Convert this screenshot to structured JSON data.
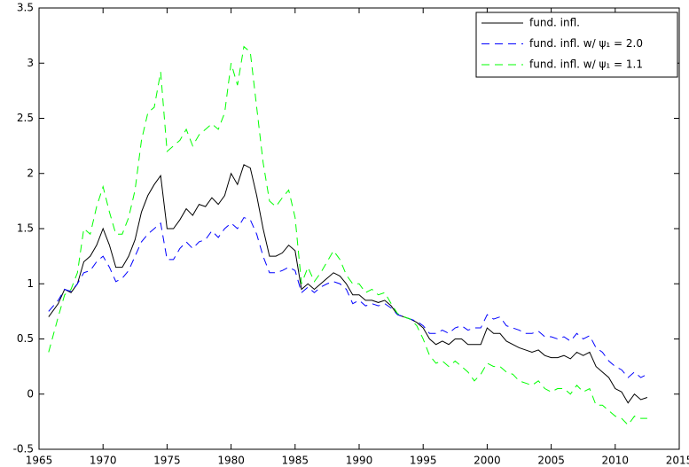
{
  "chart_data": {
    "type": "line",
    "x": [
      1965.75,
      1966.5,
      1967,
      1967.5,
      1968,
      1968.5,
      1969,
      1969.5,
      1970,
      1970.5,
      1971,
      1971.5,
      1972,
      1972.5,
      1973,
      1973.5,
      1974,
      1974.5,
      1975,
      1975.5,
      1976,
      1976.5,
      1977,
      1977.5,
      1978,
      1978.5,
      1979,
      1979.5,
      1980,
      1980.5,
      1981,
      1981.5,
      1982,
      1982.5,
      1983,
      1983.5,
      1984,
      1984.5,
      1985,
      1985.5,
      1986,
      1986.5,
      1987,
      1987.5,
      1988,
      1988.5,
      1989,
      1989.5,
      1990,
      1990.5,
      1991,
      1991.5,
      1992,
      1992.5,
      1993,
      1993.5,
      1994,
      1994.5,
      1995,
      1995.5,
      1996,
      1996.5,
      1997,
      1997.5,
      1998,
      1998.5,
      1999,
      1999.5,
      2000,
      2000.5,
      2001,
      2001.5,
      2002,
      2002.5,
      2003,
      2003.5,
      2004,
      2004.5,
      2005,
      2005.5,
      2006,
      2006.5,
      2007,
      2007.5,
      2008,
      2008.5,
      2009,
      2009.5,
      2010,
      2010.5,
      2011,
      2011.5,
      2012,
      2012.5
    ],
    "series": [
      {
        "name": "fund. infl.",
        "color": "#000000",
        "linestyle": "solid",
        "values": [
          0.7,
          0.82,
          0.95,
          0.92,
          1.0,
          1.2,
          1.25,
          1.35,
          1.5,
          1.35,
          1.15,
          1.15,
          1.25,
          1.4,
          1.65,
          1.8,
          1.9,
          1.98,
          1.5,
          1.5,
          1.58,
          1.68,
          1.62,
          1.72,
          1.7,
          1.78,
          1.72,
          1.8,
          2.0,
          1.9,
          2.08,
          2.05,
          1.8,
          1.5,
          1.25,
          1.25,
          1.28,
          1.35,
          1.3,
          0.95,
          1.0,
          0.95,
          1.0,
          1.05,
          1.1,
          1.07,
          1.0,
          0.9,
          0.9,
          0.85,
          0.85,
          0.83,
          0.85,
          0.8,
          0.72,
          0.7,
          0.68,
          0.65,
          0.6,
          0.5,
          0.45,
          0.48,
          0.45,
          0.5,
          0.5,
          0.45,
          0.45,
          0.45,
          0.6,
          0.55,
          0.55,
          0.48,
          0.45,
          0.42,
          0.4,
          0.38,
          0.4,
          0.35,
          0.33,
          0.33,
          0.35,
          0.32,
          0.38,
          0.35,
          0.38,
          0.25,
          0.2,
          0.15,
          0.05,
          0.02,
          -0.08,
          0.0,
          -0.05,
          -0.03
        ]
      },
      {
        "name": "fund. infl. w/ ψ₁ = 2.0",
        "color": "#0000ff",
        "linestyle": "dashed",
        "values": [
          0.75,
          0.85,
          0.95,
          0.93,
          1.0,
          1.1,
          1.12,
          1.2,
          1.25,
          1.15,
          1.02,
          1.05,
          1.12,
          1.25,
          1.38,
          1.45,
          1.5,
          1.55,
          1.22,
          1.22,
          1.32,
          1.38,
          1.32,
          1.38,
          1.4,
          1.48,
          1.42,
          1.5,
          1.55,
          1.5,
          1.6,
          1.58,
          1.45,
          1.25,
          1.1,
          1.1,
          1.12,
          1.15,
          1.12,
          0.92,
          0.97,
          0.92,
          0.97,
          1.0,
          1.02,
          1.0,
          0.95,
          0.82,
          0.85,
          0.8,
          0.82,
          0.8,
          0.82,
          0.78,
          0.72,
          0.7,
          0.68,
          0.66,
          0.62,
          0.55,
          0.55,
          0.58,
          0.55,
          0.6,
          0.62,
          0.58,
          0.6,
          0.6,
          0.72,
          0.68,
          0.7,
          0.62,
          0.6,
          0.58,
          0.55,
          0.55,
          0.57,
          0.52,
          0.52,
          0.5,
          0.52,
          0.48,
          0.55,
          0.5,
          0.53,
          0.42,
          0.38,
          0.3,
          0.25,
          0.22,
          0.15,
          0.2,
          0.15,
          0.18
        ]
      },
      {
        "name": "fund. infl. w/ ψ₁ = 1.1",
        "color": "#00ff00",
        "linestyle": "dashed",
        "values": [
          0.38,
          0.7,
          0.9,
          0.95,
          1.1,
          1.5,
          1.45,
          1.7,
          1.88,
          1.65,
          1.45,
          1.45,
          1.6,
          1.85,
          2.3,
          2.55,
          2.6,
          2.92,
          2.2,
          2.25,
          2.3,
          2.4,
          2.25,
          2.35,
          2.4,
          2.45,
          2.4,
          2.55,
          3.0,
          2.8,
          3.15,
          3.1,
          2.6,
          2.1,
          1.75,
          1.7,
          1.78,
          1.85,
          1.6,
          1.0,
          1.15,
          1.02,
          1.1,
          1.2,
          1.3,
          1.22,
          1.08,
          1.0,
          1.0,
          0.92,
          0.95,
          0.9,
          0.92,
          0.82,
          0.73,
          0.7,
          0.68,
          0.62,
          0.5,
          0.35,
          0.28,
          0.3,
          0.25,
          0.3,
          0.25,
          0.2,
          0.12,
          0.18,
          0.28,
          0.25,
          0.25,
          0.2,
          0.18,
          0.12,
          0.1,
          0.08,
          0.12,
          0.05,
          0.02,
          0.05,
          0.05,
          0.0,
          0.08,
          0.02,
          0.05,
          -0.1,
          -0.1,
          -0.15,
          -0.2,
          -0.22,
          -0.28,
          -0.2,
          -0.22,
          -0.22
        ]
      }
    ],
    "xlim": [
      1965,
      2015
    ],
    "xticks": [
      1965,
      1970,
      1975,
      1980,
      1985,
      1990,
      1995,
      2000,
      2005,
      2010,
      2015
    ],
    "ylim": [
      -0.5,
      3.5
    ],
    "yticks": [
      -0.5,
      0,
      0.5,
      1,
      1.5,
      2,
      2.5,
      3,
      3.5
    ],
    "grid": false,
    "legend": "northeast"
  }
}
